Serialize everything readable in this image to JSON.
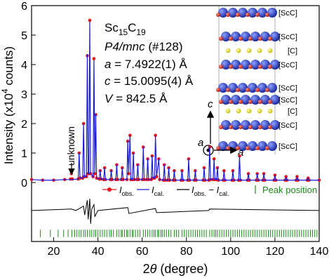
{
  "chart_data": {
    "type": "rietveld",
    "x_label": [
      {
        "text": "2",
        "style": "normal"
      },
      {
        "text": "θ",
        "style": "italic"
      },
      {
        "text": " (degree)",
        "style": "normal"
      }
    ],
    "y_label": [
      {
        "text": "Intensity (x10",
        "style": "normal"
      },
      {
        "text": "4",
        "style": "sup"
      },
      {
        "text": " counts)",
        "style": "normal"
      }
    ],
    "xlim": [
      10,
      140
    ],
    "ylim": [
      -2,
      6
    ],
    "xticks": [
      20,
      40,
      60,
      80,
      100,
      120,
      140
    ],
    "yticks": [
      0,
      1,
      2,
      3,
      4,
      5,
      6
    ],
    "x": [
      10,
      15,
      20,
      25,
      27.6,
      28,
      28.4,
      31.1,
      31.5,
      31.9,
      33.1,
      33.5,
      33.9,
      34.8,
      35.2,
      35.6,
      35.9,
      36.3,
      36.7,
      37.8,
      38.2,
      38.6,
      39,
      39.4,
      40.6,
      41,
      41.4,
      42.6,
      43,
      43.4,
      45.6,
      46,
      46.4,
      48.1,
      48.5,
      48.9,
      50.6,
      51,
      51.4,
      53.1,
      53.5,
      53.9,
      54.5,
      54.9,
      55.6,
      56,
      56.4,
      57.6,
      58,
      58.4,
      60.1,
      60.5,
      60.9,
      62.1,
      62.5,
      62.9,
      64.1,
      64.5,
      64.9,
      65.6,
      66,
      66.5,
      67.5,
      67.9,
      69.6,
      70,
      70.4,
      71.6,
      72,
      72.4,
      74.1,
      74.5,
      74.9,
      77.6,
      78,
      78.4,
      80.6,
      81,
      81.4,
      83.6,
      84,
      84.4,
      87.6,
      88,
      88.4,
      90.1,
      90.5,
      90.9,
      92.1,
      92.5,
      92.9,
      93.6,
      94,
      94.4,
      96.6,
      97,
      97.4,
      100.6,
      101,
      101.4,
      103.6,
      104,
      104.4,
      107.6,
      108,
      108.4,
      111.6,
      112,
      112.4,
      114.6,
      115,
      115.4,
      119.6,
      120,
      120.4,
      124.6,
      125,
      125.4,
      129.6,
      130,
      130.4,
      134.6,
      135,
      135.4,
      140
    ],
    "series": [
      {
        "name": [
          {
            "text": "I",
            "style": "italic"
          },
          {
            "text": "obs.",
            "style": "sub"
          }
        ],
        "color": "#e8131a",
        "style": "dots",
        "values": [
          0.1,
          0.08,
          0.08,
          0.1,
          0.12,
          0.3,
          0.12,
          0.12,
          1.0,
          0.15,
          0.15,
          2.0,
          0.2,
          0.2,
          4.3,
          0.3,
          0.3,
          5.5,
          0.3,
          0.2,
          4.2,
          0.3,
          2.3,
          0.15,
          0.12,
          0.4,
          0.12,
          0.1,
          0.5,
          0.1,
          0.1,
          0.4,
          0.1,
          0.1,
          0.6,
          0.1,
          0.1,
          0.5,
          0.1,
          0.1,
          1.4,
          0.3,
          1.6,
          0.1,
          0.1,
          1.0,
          0.1,
          0.1,
          0.6,
          0.1,
          0.1,
          1.2,
          0.1,
          0.1,
          0.8,
          0.1,
          0.1,
          0.9,
          0.15,
          0.15,
          1.6,
          0.2,
          0.8,
          0.1,
          0.08,
          0.6,
          0.08,
          0.08,
          0.5,
          0.08,
          0.08,
          0.4,
          0.08,
          0.08,
          0.4,
          0.08,
          0.08,
          0.8,
          0.08,
          0.08,
          0.4,
          0.08,
          0.08,
          0.5,
          0.08,
          0.08,
          1.2,
          0.1,
          0.1,
          0.8,
          0.1,
          0.1,
          0.5,
          0.08,
          0.08,
          0.4,
          0.08,
          0.08,
          0.4,
          0.08,
          0.08,
          0.9,
          0.08,
          0.08,
          0.3,
          0.08,
          0.08,
          0.3,
          0.08,
          0.08,
          0.3,
          0.08,
          0.08,
          0.25,
          0.08,
          0.08,
          0.2,
          0.08,
          0.08,
          0.2,
          0.08,
          0.08,
          0.15,
          0.08,
          0.08
        ]
      },
      {
        "name": [
          {
            "text": "I",
            "style": "italic"
          },
          {
            "text": "cal.",
            "style": "sub"
          }
        ],
        "color": "#1a1adc",
        "style": "line",
        "values": [
          0.1,
          0.08,
          0.08,
          0.1,
          0.1,
          0.1,
          0.1,
          0.12,
          1.0,
          0.15,
          0.15,
          2.0,
          0.2,
          0.2,
          4.35,
          0.3,
          0.3,
          5.45,
          0.3,
          0.2,
          4.15,
          0.3,
          2.3,
          0.15,
          0.12,
          0.4,
          0.12,
          0.1,
          0.5,
          0.1,
          0.1,
          0.4,
          0.1,
          0.1,
          0.6,
          0.1,
          0.1,
          0.5,
          0.1,
          0.1,
          1.4,
          0.3,
          1.6,
          0.1,
          0.1,
          1.0,
          0.1,
          0.1,
          0.6,
          0.1,
          0.1,
          1.2,
          0.1,
          0.1,
          0.8,
          0.1,
          0.1,
          0.9,
          0.15,
          0.15,
          1.6,
          0.2,
          0.8,
          0.1,
          0.08,
          0.6,
          0.08,
          0.08,
          0.5,
          0.08,
          0.08,
          0.4,
          0.08,
          0.08,
          0.4,
          0.08,
          0.08,
          0.8,
          0.08,
          0.08,
          0.4,
          0.08,
          0.08,
          0.5,
          0.08,
          0.08,
          1.2,
          0.1,
          0.1,
          0.8,
          0.1,
          0.1,
          0.5,
          0.08,
          0.08,
          0.4,
          0.08,
          0.08,
          0.4,
          0.08,
          0.08,
          0.9,
          0.08,
          0.08,
          0.3,
          0.08,
          0.08,
          0.3,
          0.08,
          0.08,
          0.3,
          0.08,
          0.08,
          0.25,
          0.08,
          0.08,
          0.2,
          0.08,
          0.08,
          0.2,
          0.08,
          0.08,
          0.15,
          0.08,
          0.08
        ]
      }
    ],
    "difference": {
      "name": [
        {
          "text": "I",
          "style": "italic"
        },
        {
          "text": "obs.",
          "style": "sub"
        },
        {
          "text": " − ",
          "style": "normal"
        },
        {
          "text": "I",
          "style": "italic"
        },
        {
          "text": "cal.",
          "style": "sub"
        }
      ],
      "color": "#000000",
      "x": [
        10,
        28,
        30,
        33.5,
        34,
        35.2,
        35.6,
        36.3,
        36.7,
        37.2,
        38.2,
        38.6,
        40,
        53.5,
        54,
        66,
        66.5,
        90,
        90.5,
        140
      ],
      "values": [
        -0.95,
        -0.9,
        -0.95,
        -0.8,
        -1.1,
        -0.6,
        -1.25,
        -0.55,
        -1.4,
        -0.9,
        -0.75,
        -1.15,
        -0.95,
        -0.85,
        -1.05,
        -0.88,
        -1.02,
        -0.95,
        -0.9,
        -0.95
      ]
    },
    "peak_positions": {
      "name": "Peak position",
      "color": "#1a8a1a",
      "marker": "|",
      "ylim": [
        -1.85,
        -1.6
      ],
      "x": [
        14,
        18.5,
        22,
        24.5,
        26.5,
        28.2,
        29.5,
        30.5,
        31.5,
        32.4,
        33.5,
        34.3,
        35.2,
        36.3,
        37.2,
        38.2,
        39,
        40,
        41,
        42,
        43,
        44,
        45.2,
        46,
        47,
        48.5,
        49.5,
        50.5,
        51,
        52,
        53,
        53.5,
        54.5,
        55.5,
        56,
        57,
        58,
        59,
        60.5,
        61.5,
        62.5,
        63.5,
        64.5,
        65.3,
        66,
        67,
        67.5,
        68.5,
        69.2,
        70,
        71,
        72,
        73,
        74.5,
        75.5,
        76.5,
        78,
        79,
        80,
        81,
        82,
        83,
        84,
        85,
        86,
        87,
        88,
        89,
        90.5,
        91.5,
        92.5,
        93.2,
        94,
        95,
        96,
        97,
        98,
        99,
        100,
        101,
        102,
        103,
        104,
        105,
        106,
        107,
        108,
        109,
        110,
        111,
        112,
        113,
        114,
        115,
        116,
        117,
        118,
        119,
        120,
        121,
        122,
        123,
        124,
        125,
        126,
        127,
        128,
        129,
        130,
        131,
        132,
        133,
        134,
        135,
        136,
        137,
        138,
        139
      ]
    },
    "annotations": [
      [
        {
          "text": "Sc",
          "style": "normal"
        },
        {
          "text": "15",
          "style": "sub"
        },
        {
          "text": "C",
          "style": "normal"
        },
        {
          "text": "19",
          "style": "sub"
        }
      ],
      [
        {
          "text": "P4/mnc",
          "style": "italic"
        },
        {
          "text": " (#128)",
          "style": "normal"
        }
      ],
      [
        {
          "text": "a",
          "style": "italic"
        },
        {
          "text": " = 7.4922(1) Å",
          "style": "normal"
        }
      ],
      [
        {
          "text": "c",
          "style": "italic"
        },
        {
          "text": " = 15.0095(4) Å",
          "style": "normal"
        }
      ],
      [
        {
          "text": "V",
          "style": "italic"
        },
        {
          "text": " = 842.5 Å",
          "style": "normal"
        }
      ]
    ],
    "unknown_label": "unknown",
    "structure_labels": [
      "[ScC]",
      "[ScC]",
      "[C]",
      "[ScC]",
      "[ScC]",
      "[ScC]",
      "[C]",
      "[ScC]",
      "[ScC]"
    ],
    "axis_glyph_labels": [
      "c",
      "a",
      "a"
    ]
  }
}
